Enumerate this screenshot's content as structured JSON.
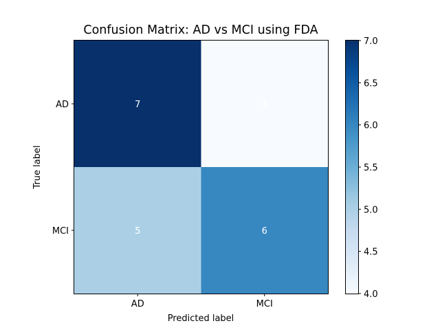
{
  "chart_data": {
    "type": "heatmap",
    "title": "Confusion Matrix: AD vs MCI using FDA",
    "xlabel": "Predicted label",
    "ylabel": "True label",
    "row_labels": [
      "AD",
      "MCI"
    ],
    "col_labels": [
      "AD",
      "MCI"
    ],
    "values": [
      [
        7,
        4
      ],
      [
        5,
        6
      ]
    ],
    "colormap": "Blues",
    "colorbar": {
      "min": 4.0,
      "max": 7.0,
      "ticks": [
        "4.0",
        "4.5",
        "5.0",
        "5.5",
        "6.0",
        "6.5",
        "7.0"
      ]
    },
    "grid": false
  }
}
